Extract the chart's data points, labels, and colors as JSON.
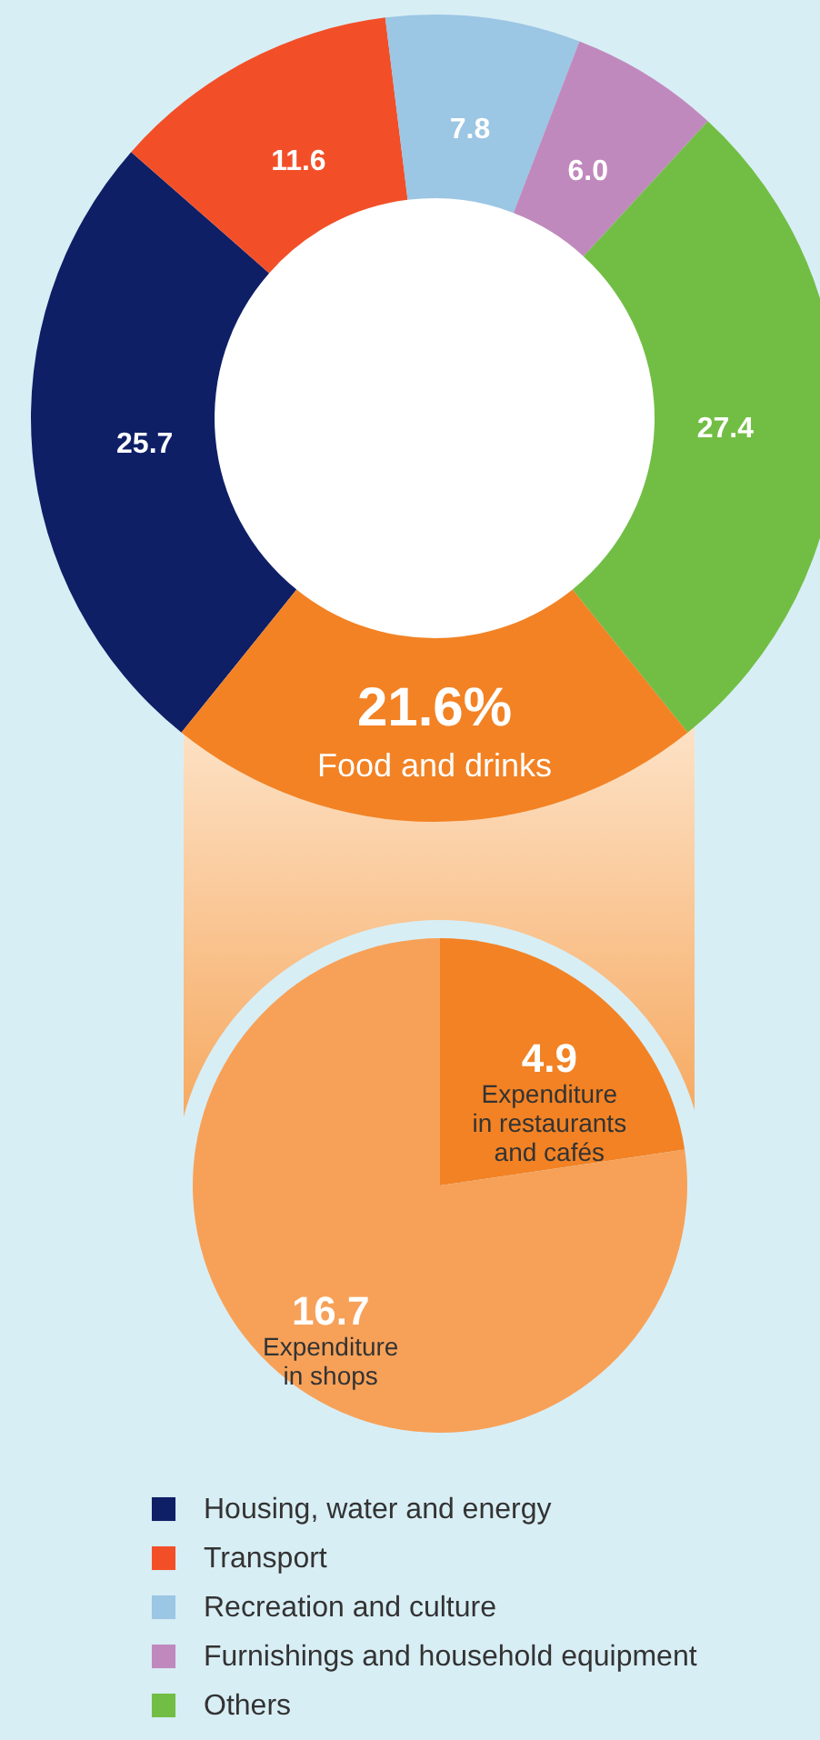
{
  "chart_data": [
    {
      "type": "donut",
      "categories": [
        "Housing, water and energy",
        "Transport",
        "Recreation and culture",
        "Furnishings and household equipment",
        "Others",
        "Food and drinks"
      ],
      "values": [
        25.7,
        11.6,
        7.8,
        6.0,
        27.4,
        21.6
      ],
      "colors": [
        "#0e1f66",
        "#f24f29",
        "#9bc6e4",
        "#c089bd",
        "#72be45",
        "#f28224"
      ],
      "value_labels": [
        "25.7",
        "11.6",
        "7.8",
        "6.0",
        "27.4",
        "21.6%"
      ],
      "legend": "bottom"
    },
    {
      "type": "pie",
      "categories": [
        "Expenditure in restaurants and cafés",
        "Expenditure in shops"
      ],
      "values": [
        4.9,
        16.7
      ],
      "colors": [
        "#f28224",
        "#f7a158"
      ],
      "data_labels": true
    }
  ]
}
